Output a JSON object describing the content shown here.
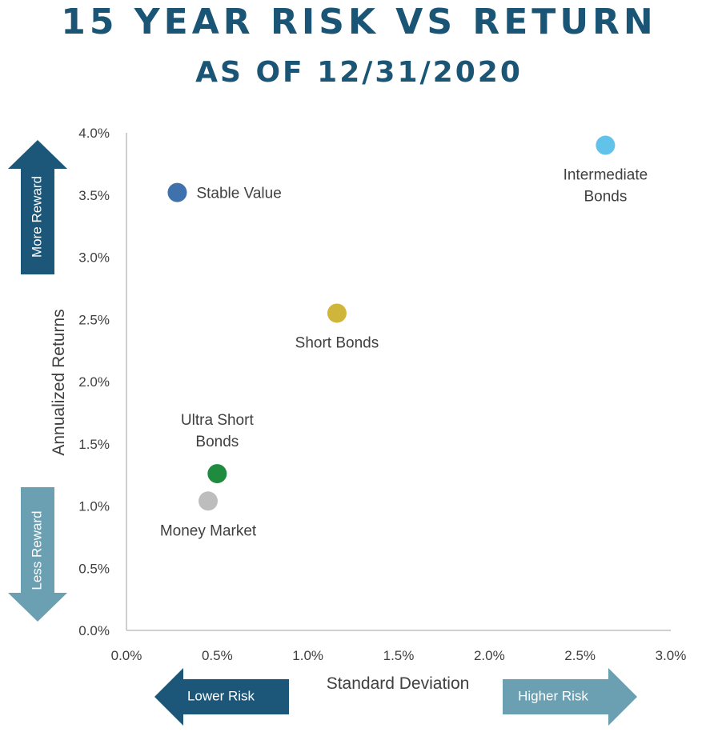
{
  "header": {
    "title": "15 YEAR RISK VS RETURN",
    "subtitle": "AS OF 12/31/2020"
  },
  "chart_data": {
    "type": "scatter",
    "xlabel": "Standard Deviation",
    "ylabel": "Annualized Returns",
    "xlim": [
      0,
      3.0
    ],
    "ylim": [
      0,
      4.0
    ],
    "x_ticks": [
      "0.0%",
      "0.5%",
      "1.0%",
      "1.5%",
      "2.0%",
      "2.5%",
      "3.0%"
    ],
    "y_ticks": [
      "0.0%",
      "0.5%",
      "1.0%",
      "1.5%",
      "2.0%",
      "2.5%",
      "3.0%",
      "3.5%",
      "4.0%"
    ],
    "grid": false,
    "series": [
      {
        "name": "Stable Value",
        "x": 0.28,
        "y": 3.52,
        "color": "#3f72ad",
        "label_lines": [
          "Stable Value"
        ],
        "label_pos": "right"
      },
      {
        "name": "Intermediate Bonds",
        "x": 2.64,
        "y": 3.9,
        "color": "#62c3ea",
        "label_lines": [
          "Intermediate",
          "Bonds"
        ],
        "label_pos": "below"
      },
      {
        "name": "Short Bonds",
        "x": 1.16,
        "y": 2.55,
        "color": "#cfb53a",
        "label_lines": [
          "Short Bonds"
        ],
        "label_pos": "below"
      },
      {
        "name": "Ultra Short Bonds",
        "x": 0.5,
        "y": 1.26,
        "color": "#1f8b3f",
        "label_lines": [
          "Ultra Short",
          "Bonds"
        ],
        "label_pos": "above"
      },
      {
        "name": "Money Market",
        "x": 0.45,
        "y": 1.04,
        "color": "#bdbdbd",
        "label_lines": [
          "Money Market"
        ],
        "label_pos": "below"
      }
    ]
  },
  "indicators": {
    "more_reward": "More Reward",
    "less_reward": "Less Reward",
    "lower_risk": "Lower Risk",
    "higher_risk": "Higher Risk"
  },
  "colors": {
    "title": "#1b5575",
    "dark_arrow": "#1c5779",
    "light_arrow": "#6b9fb2",
    "axis": "#bfbfbf"
  }
}
